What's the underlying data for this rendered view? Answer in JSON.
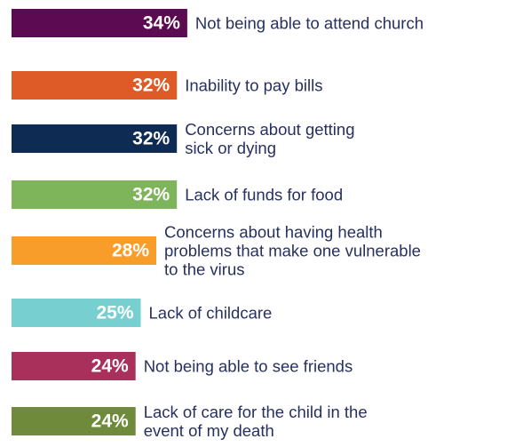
{
  "chart_data": {
    "type": "bar",
    "orientation": "horizontal",
    "categories": [
      "Not being able to attend church",
      "Inability to pay bills",
      "Concerns about getting sick or dying",
      "Lack of funds for food",
      "Concerns about having health problems that make one vulnerable to the virus",
      "Lack of childcare",
      "Not being able to see friends",
      "Lack of care for the child in the event of my death"
    ],
    "category_lines": [
      [
        "Not being able to attend church"
      ],
      [
        "Inability to pay bills"
      ],
      [
        "Concerns about getting",
        "sick or dying"
      ],
      [
        "Lack of funds for food"
      ],
      [
        "Concerns about having health",
        "problems that make one vulnerable",
        "to the virus"
      ],
      [
        "Lack of childcare"
      ],
      [
        "Not being able to see friends"
      ],
      [
        "Lack of care for the child in the",
        "event of my death"
      ]
    ],
    "values": [
      34,
      32,
      32,
      32,
      28,
      25,
      24,
      24
    ],
    "data_labels": [
      "34%",
      "32%",
      "32%",
      "32%",
      "28%",
      "25%",
      "24%",
      "24%"
    ],
    "colors": [
      "#5c0a52",
      "#de5a26",
      "#0e2b54",
      "#7eb45a",
      "#f99d2a",
      "#78cfd0",
      "#a8305b",
      "#6f8a3a"
    ],
    "text_color": "#27305f",
    "xlim": [
      0,
      34
    ],
    "grid": false,
    "legend": "none"
  }
}
